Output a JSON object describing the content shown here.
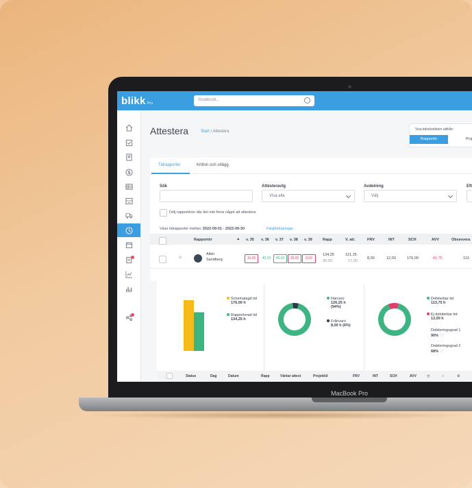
{
  "app": {
    "brand": "blikk",
    "brand_tier": "Pro",
    "search_placeholder": "Snabbsök..."
  },
  "page": {
    "title": "Attestera",
    "breadcrumb_home": "Start",
    "breadcrumb_sep": "/",
    "breadcrumb_current": "Attestera"
  },
  "view_toggle": {
    "label": "Visa tidsrkortlsten utifrån:",
    "option_active": "Rapportör",
    "option_other": "Proje"
  },
  "tabs": {
    "active": "Tidrapporter",
    "other": "Kritton och utlägg"
  },
  "filters": {
    "sok_label": "Sök",
    "sok_value": "",
    "attest_label": "Attesteravtg",
    "attest_value": "Visa alla",
    "avdelning_label": "Avdelning",
    "avdelning_value": "Välj",
    "extra_label": "Eft"
  },
  "hide_checkbox_label": "Dölj rapportörer där det inte finns något att attestera",
  "showing": {
    "prefix": "Visar tidrapporter mellan:",
    "range": "2022-09-01 - 2022-09-30",
    "link": "Färgförklaringar"
  },
  "table": {
    "headers": [
      "Rapportör",
      "v. 35",
      "v. 36",
      "v. 37",
      "v. 38",
      "v. 39",
      "Rapp",
      "V. att.",
      "FRV",
      "INT",
      "SCH",
      "AVV",
      "Observera"
    ],
    "row": {
      "first": "Albin",
      "last": "Sandberg",
      "weeks": [
        "15,00",
        "40,25",
        "40,00",
        "39,00",
        "0,00"
      ],
      "rapp": "134,25",
      "rapp2": "30,00",
      "vatt": "121,25",
      "vatt2": "17,00",
      "frv": "8,00",
      "int": "12,00",
      "sch": "176,00",
      "avv": "-41,75",
      "obs": "113"
    }
  },
  "charts": {
    "bar": {
      "legend": [
        {
          "label": "Schemalagd tid",
          "value": "176,00 h"
        },
        {
          "label": "Rapporterad tid",
          "value": "134,25 h"
        }
      ]
    },
    "presence": {
      "legend": [
        {
          "label": "Närvaro",
          "value": "126,25 h",
          "pct": "(94%)"
        },
        {
          "label": "Frånvaro",
          "value": "8,00 h (6%)"
        }
      ]
    },
    "billing": {
      "legend": [
        {
          "label": "Debiterbar tid",
          "value": "113,75 h"
        },
        {
          "label": "Ej debiterbar tid",
          "value": "13,00 h"
        },
        {
          "label": "Debiteringsgrad 1",
          "value": "90%"
        },
        {
          "label": "Debiteringsgrad 2",
          "value": "68%"
        }
      ]
    }
  },
  "chart_data": [
    {
      "type": "bar",
      "categories": [
        "Schemalagd tid",
        "Rapporterad tid"
      ],
      "values": [
        176.0,
        134.25
      ]
    },
    {
      "type": "pie",
      "categories": [
        "Närvaro",
        "Frånvaro"
      ],
      "values": [
        126.25,
        8.0
      ]
    },
    {
      "type": "pie",
      "categories": [
        "Debiterbar tid",
        "Ej debiterbar tid"
      ],
      "values": [
        113.75,
        13.0
      ]
    }
  ],
  "footer_headers": [
    "Status",
    "Dag",
    "Datum",
    "Rapp",
    "Väntar attest",
    "Projekt/d",
    "FRV",
    "INT",
    "SCH",
    "AVV"
  ],
  "laptop_label": "MacBook Pro",
  "colors": {
    "accent": "#3a9ee0",
    "yellow": "#f5bb1b",
    "green": "#3db482",
    "dark": "#2f3a45",
    "pink": "#e23c6a"
  }
}
